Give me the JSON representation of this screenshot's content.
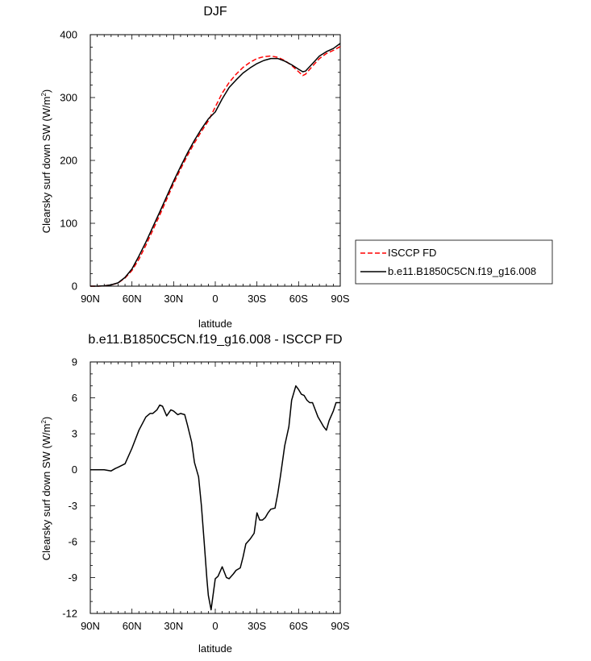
{
  "chart_data": [
    {
      "type": "line",
      "title": "DJF",
      "xlabel": "latitude",
      "ylabel": "Clearsky surf down SW (W/m²)",
      "ylabel_main": "Clearsky surf down SW (W/m",
      "ylabel_sup": "2",
      "ylabel_close": ")",
      "xlim": [
        -90,
        90
      ],
      "ylim": [
        0,
        400
      ],
      "x_tick_values": [
        -90,
        -60,
        -30,
        0,
        30,
        60,
        90
      ],
      "x_tick_labels": [
        "90N",
        "60N",
        "30N",
        "0",
        "30S",
        "60S",
        "90S"
      ],
      "y_tick_values": [
        0,
        100,
        200,
        300,
        400
      ],
      "y_tick_labels": [
        "0",
        "100",
        "200",
        "300",
        "400"
      ],
      "grid": false,
      "legend_position": "right",
      "series": [
        {
          "name": "ISCCP FD",
          "color": "#ff0000",
          "dash": "dashed",
          "x": [
            -90,
            -85,
            -80,
            -75,
            -70,
            -65,
            -60,
            -55,
            -50,
            -45,
            -40,
            -35,
            -30,
            -25,
            -20,
            -15,
            -10,
            -5,
            0,
            5,
            10,
            15,
            20,
            25,
            30,
            35,
            40,
            45,
            50,
            55,
            60,
            63,
            65,
            70,
            75,
            80,
            85,
            90
          ],
          "values": [
            0,
            0,
            0.5,
            2,
            5,
            13,
            25,
            43,
            65,
            89,
            113,
            138,
            163,
            186,
            208,
            228,
            246,
            263,
            285,
            307,
            324,
            337,
            348,
            356,
            362,
            365,
            366,
            364,
            359,
            351,
            341,
            335,
            337,
            350,
            362,
            370,
            375,
            381
          ]
        },
        {
          "name": "b.e11.B1850C5CN.f19_g16.008",
          "color": "#000000",
          "dash": "solid",
          "x": [
            -90,
            -85,
            -80,
            -75,
            -70,
            -65,
            -60,
            -55,
            -50,
            -45,
            -40,
            -35,
            -30,
            -25,
            -20,
            -15,
            -10,
            -5,
            0,
            5,
            10,
            15,
            20,
            25,
            30,
            35,
            40,
            45,
            50,
            55,
            60,
            63,
            65,
            70,
            75,
            80,
            85,
            90
          ],
          "values": [
            0,
            0,
            0.5,
            2,
            5.2,
            14,
            27.5,
            48,
            70,
            94,
            118,
            142.5,
            167,
            190,
            212,
            232,
            250,
            266,
            277,
            298,
            316,
            328,
            339,
            347,
            354,
            359,
            362,
            362,
            358,
            352,
            345,
            341,
            342,
            354,
            366,
            373,
            378,
            386
          ]
        }
      ]
    },
    {
      "type": "line",
      "title": "b.e11.B1850C5CN.f19_g16.008 - ISCCP FD",
      "xlabel": "latitude",
      "ylabel": "Clearsky surf down SW (W/m²)",
      "ylabel_main": "Clearsky surf down SW (W/m",
      "ylabel_sup": "2",
      "ylabel_close": ")",
      "xlim": [
        -90,
        90
      ],
      "ylim": [
        -12,
        9
      ],
      "x_tick_values": [
        -90,
        -60,
        -30,
        0,
        30,
        60,
        90
      ],
      "x_tick_labels": [
        "90N",
        "60N",
        "30N",
        "0",
        "30S",
        "60S",
        "90S"
      ],
      "y_tick_values": [
        -12,
        -9,
        -6,
        -3,
        0,
        3,
        6,
        9
      ],
      "y_tick_labels": [
        "-12",
        "-9",
        "-6",
        "-3",
        "0",
        "3",
        "6",
        "9"
      ],
      "grid": false,
      "series": [
        {
          "color": "#000000",
          "dash": "solid",
          "x": [
            -90,
            -85,
            -80,
            -75,
            -72,
            -70,
            -65,
            -60,
            -55,
            -50,
            -47,
            -45,
            -42,
            -40,
            -38,
            -35,
            -32,
            -30,
            -27,
            -25,
            -22,
            -20,
            -17,
            -15,
            -12,
            -10,
            -8,
            -6,
            -5,
            -3,
            0,
            2,
            5,
            8,
            10,
            13,
            15,
            18,
            20,
            22,
            25,
            28,
            30,
            32,
            34,
            36,
            38,
            40,
            43,
            45,
            47,
            50,
            53,
            55,
            58,
            60,
            62,
            64,
            66,
            68,
            70,
            72,
            74,
            76,
            78,
            80,
            82,
            85,
            87,
            90
          ],
          "values": [
            0,
            0,
            0,
            -0.1,
            0.1,
            0.2,
            0.5,
            1.8,
            3.3,
            4.4,
            4.7,
            4.7,
            5.0,
            5.4,
            5.3,
            4.5,
            5.0,
            4.9,
            4.6,
            4.7,
            4.6,
            3.7,
            2.3,
            0.6,
            -0.6,
            -3.0,
            -6.0,
            -9.2,
            -10.5,
            -11.7,
            -9.1,
            -8.9,
            -8.1,
            -9.0,
            -9.1,
            -8.7,
            -8.4,
            -8.2,
            -7.3,
            -6.2,
            -5.8,
            -5.3,
            -3.6,
            -4.2,
            -4.2,
            -4.0,
            -3.6,
            -3.3,
            -3.2,
            -2.0,
            -0.5,
            2.0,
            3.6,
            5.8,
            7.0,
            6.7,
            6.3,
            6.2,
            5.8,
            5.6,
            5.6,
            5.0,
            4.4,
            4.0,
            3.6,
            3.3,
            4.1,
            4.9,
            5.6,
            5.6
          ]
        }
      ]
    }
  ]
}
